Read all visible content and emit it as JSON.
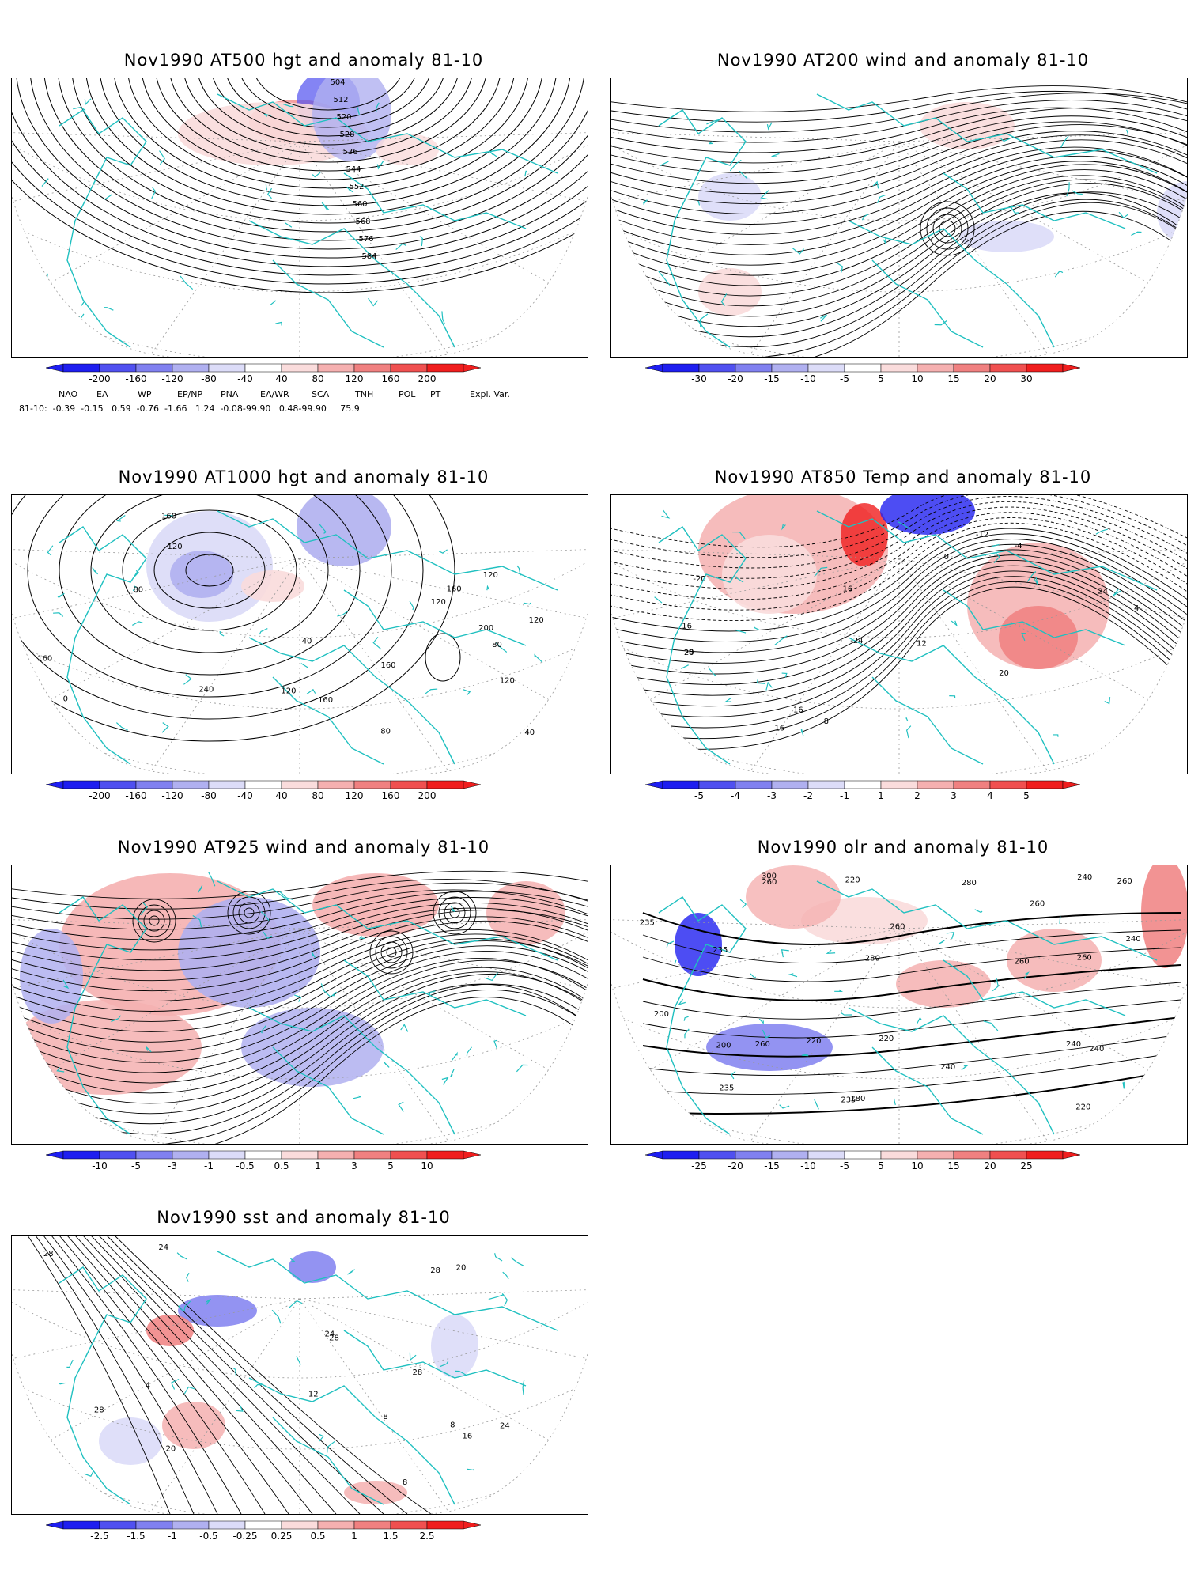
{
  "panels": [
    {
      "id": "p500",
      "title": "Nov1990 AT500 hgt and anomaly 81-10",
      "colorbar": [
        "-200",
        "-160",
        "-120",
        "-80",
        "-40",
        "40",
        "80",
        "120",
        "160",
        "200"
      ],
      "contour_labels": [
        "504",
        "512",
        "520",
        "528",
        "536",
        "544",
        "552",
        "560",
        "568",
        "576",
        "584"
      ]
    },
    {
      "id": "p200",
      "title": "Nov1990 AT200 wind and anomaly 81-10",
      "colorbar": [
        "-30",
        "-20",
        "-15",
        "-10",
        "-5",
        "5",
        "10",
        "15",
        "20",
        "30"
      ],
      "contour_labels": []
    },
    {
      "id": "p1000",
      "title": "Nov1990 AT1000 hgt and anomaly 81-10",
      "colorbar": [
        "-200",
        "-160",
        "-120",
        "-80",
        "-40",
        "40",
        "80",
        "120",
        "160",
        "200"
      ],
      "contour_labels": [
        "160",
        "120",
        "40",
        "0",
        "40",
        "160",
        "80",
        "120",
        "200",
        "240",
        "160",
        "120",
        "120",
        "160",
        "120",
        "80",
        "120",
        "80",
        "160"
      ]
    },
    {
      "id": "p850",
      "title": "Nov1990 AT850 Temp and anomaly 81-10",
      "colorbar": [
        "-5",
        "-4",
        "-3",
        "-2",
        "-1",
        "1",
        "2",
        "3",
        "4",
        "5"
      ],
      "contour_labels": [
        "-12",
        "-24",
        "-20",
        "-16",
        "-8",
        "-4",
        "0",
        "4",
        "8",
        "12",
        "16",
        "16",
        "16",
        "20",
        "24",
        "20"
      ]
    },
    {
      "id": "p925",
      "title": "Nov1990 AT925 wind and anomaly 81-10",
      "colorbar": [
        "-10",
        "-5",
        "-3",
        "-1",
        "-0.5",
        "0.5",
        "1",
        "3",
        "5",
        "10"
      ],
      "contour_labels": []
    },
    {
      "id": "polr",
      "title": "Nov1990 olr and anomaly 81-10",
      "colorbar": [
        "-25",
        "-20",
        "-15",
        "-10",
        "-5",
        "5",
        "10",
        "15",
        "20",
        "25"
      ],
      "contour_labels": [
        "240",
        "260",
        "220",
        "235",
        "260",
        "240",
        "180",
        "200",
        "220",
        "235",
        "240",
        "260",
        "300",
        "280",
        "260",
        "220",
        "240",
        "235",
        "200",
        "220",
        "235",
        "260",
        "240",
        "260",
        "280",
        "260"
      ]
    },
    {
      "id": "psst",
      "title": "Nov1990 sst and anomaly 81-10",
      "colorbar": [
        "-2.5",
        "-1.5",
        "-1",
        "-0.5",
        "-0.25",
        "0.25",
        "0.5",
        "1",
        "1.5",
        "2.5"
      ],
      "contour_labels": [
        "28",
        "24",
        "24",
        "4",
        "8",
        "12",
        "16",
        "20",
        "20",
        "24",
        "28",
        "28",
        "28",
        "28",
        "8",
        "8"
      ]
    }
  ],
  "teleconnections": {
    "headers": [
      "NAO",
      "EA",
      "WP",
      "EP/NP",
      "PNA",
      "EA/WR",
      "SCA",
      "TNH",
      "POL",
      "PT",
      "Expl. Var."
    ],
    "row_label": "81-10:",
    "values": "-0.39  -0.15   0.59  -0.76  -1.66   1.24  -0.08-99.90   0.48-99.90     75.9"
  },
  "colors": {
    "blue_dark": "#2020f0",
    "red_dark": "#f02020",
    "coast": "#20c0c0"
  }
}
